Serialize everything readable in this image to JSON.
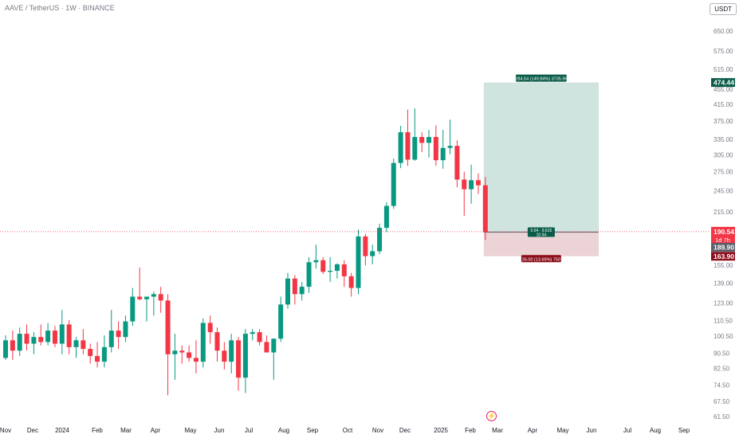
{
  "header": {
    "symbol_line": "AAVE / TetherUS · 1W · BINANCE",
    "currency": "USDT"
  },
  "colors": {
    "up": "#089981",
    "down": "#f23645",
    "profit_zone": "#cfe3df",
    "loss_zone": "#ecd3d6",
    "target_label": "#0a5c49",
    "stop_label": "#8b0e1b",
    "grid_text": "#787b86"
  },
  "chart_data": {
    "type": "candlestick",
    "scale": "log",
    "ylim": [
      58,
      720
    ],
    "y_ticks": [
      61.5,
      67.5,
      74.5,
      82.5,
      90.5,
      100.5,
      110.5,
      123.0,
      139.0,
      155.0,
      185.0,
      215.0,
      245.0,
      275.0,
      305.0,
      335.0,
      375.0,
      415.0,
      455.0,
      515.0,
      575.0,
      650.0
    ],
    "x_labels": [
      "Nov",
      "Dec",
      "2024",
      "Feb",
      "Mar",
      "Apr",
      "May",
      "Jun",
      "Jul",
      "Aug",
      "Sep",
      "Oct",
      "Nov",
      "Dec",
      "2025",
      "Feb",
      "Mar",
      "Apr",
      "May",
      "Jun",
      "Jul",
      "Aug",
      "Sep"
    ],
    "y_tick_labels": [
      "61.50",
      "67.50",
      "74.50",
      "82.50",
      "90.50",
      "100.50",
      "110.50",
      "123.00",
      "139.00",
      "155.00",
      "185.00",
      "215.00",
      "245.00",
      "275.00",
      "305.00",
      "335.00",
      "375.00",
      "415.00",
      "455.00",
      "515.00",
      "575.00",
      "650.00"
    ],
    "candles": [
      [
        88,
        101,
        87,
        98
      ],
      [
        98,
        104,
        87,
        92
      ],
      [
        92,
        106,
        89,
        102
      ],
      [
        102,
        108,
        92,
        96
      ],
      [
        96,
        103,
        90,
        100
      ],
      [
        100,
        108,
        95,
        97
      ],
      [
        97,
        109,
        95,
        104
      ],
      [
        104,
        107,
        94,
        96
      ],
      [
        96,
        118,
        90,
        108
      ],
      [
        108,
        111,
        90,
        94
      ],
      [
        94,
        100,
        88,
        98
      ],
      [
        98,
        105,
        90,
        93
      ],
      [
        93,
        96,
        85,
        89
      ],
      [
        89,
        97,
        83,
        86
      ],
      [
        86,
        101,
        83,
        94
      ],
      [
        94,
        118,
        91,
        104
      ],
      [
        104,
        110,
        93,
        100
      ],
      [
        100,
        114,
        97,
        110
      ],
      [
        110,
        135,
        107,
        128
      ],
      [
        128,
        153,
        125,
        126
      ],
      [
        126,
        128,
        110,
        128
      ],
      [
        128,
        132,
        114,
        130
      ],
      [
        130,
        136,
        116,
        125
      ],
      [
        125,
        130,
        70,
        90
      ],
      [
        90,
        102,
        77,
        92
      ],
      [
        92,
        95,
        85,
        91
      ],
      [
        91,
        95,
        86,
        88
      ],
      [
        88,
        98,
        80,
        86
      ],
      [
        86,
        112,
        83,
        109
      ],
      [
        109,
        114,
        96,
        103
      ],
      [
        103,
        106,
        86,
        92
      ],
      [
        92,
        97,
        82,
        86
      ],
      [
        86,
        102,
        80,
        98
      ],
      [
        98,
        100,
        72,
        78
      ],
      [
        78,
        105,
        71,
        102
      ],
      [
        102,
        105,
        98,
        103
      ],
      [
        103,
        105,
        95,
        97
      ],
      [
        97,
        101,
        92,
        91
      ],
      [
        91,
        99,
        77,
        99
      ],
      [
        99,
        128,
        97,
        122
      ],
      [
        122,
        148,
        119,
        143
      ],
      [
        143,
        146,
        122,
        130
      ],
      [
        130,
        140,
        125,
        136
      ],
      [
        136,
        163,
        131,
        158
      ],
      [
        158,
        176,
        152,
        160
      ],
      [
        160,
        163,
        147,
        149
      ],
      [
        149,
        163,
        140,
        150
      ],
      [
        150,
        157,
        143,
        156
      ],
      [
        156,
        160,
        136,
        145
      ],
      [
        145,
        148,
        128,
        135
      ],
      [
        135,
        193,
        130,
        185
      ],
      [
        185,
        188,
        155,
        164
      ],
      [
        164,
        176,
        156,
        169
      ],
      [
        169,
        200,
        166,
        195
      ],
      [
        195,
        228,
        190,
        223
      ],
      [
        223,
        298,
        219,
        290
      ],
      [
        290,
        364,
        281,
        350
      ],
      [
        350,
        402,
        285,
        296
      ],
      [
        296,
        405,
        294,
        340
      ],
      [
        340,
        350,
        310,
        328
      ],
      [
        328,
        355,
        300,
        340
      ],
      [
        340,
        365,
        285,
        295
      ],
      [
        295,
        355,
        280,
        318
      ],
      [
        318,
        378,
        306,
        322
      ],
      [
        322,
        333,
        250,
        262
      ],
      [
        262,
        275,
        210,
        247
      ],
      [
        247,
        287,
        226,
        261
      ],
      [
        261,
        272,
        240,
        253
      ],
      [
        253,
        266,
        181,
        190
      ]
    ],
    "long_position": {
      "entry": 189.9,
      "target": 474.44,
      "stop": 163.9,
      "current": 190.54,
      "target_text": "284.54 (149.84%) 3735.96",
      "stop_text": "26.00 (13.69%) 750",
      "mid_text_1": "0.64 · 9.615",
      "mid_text_2": "10.94"
    },
    "price_labels": {
      "target": "474.44",
      "current": "190.54",
      "countdown": "1d 7h",
      "entry": "189.90",
      "stop": "163.90"
    }
  }
}
